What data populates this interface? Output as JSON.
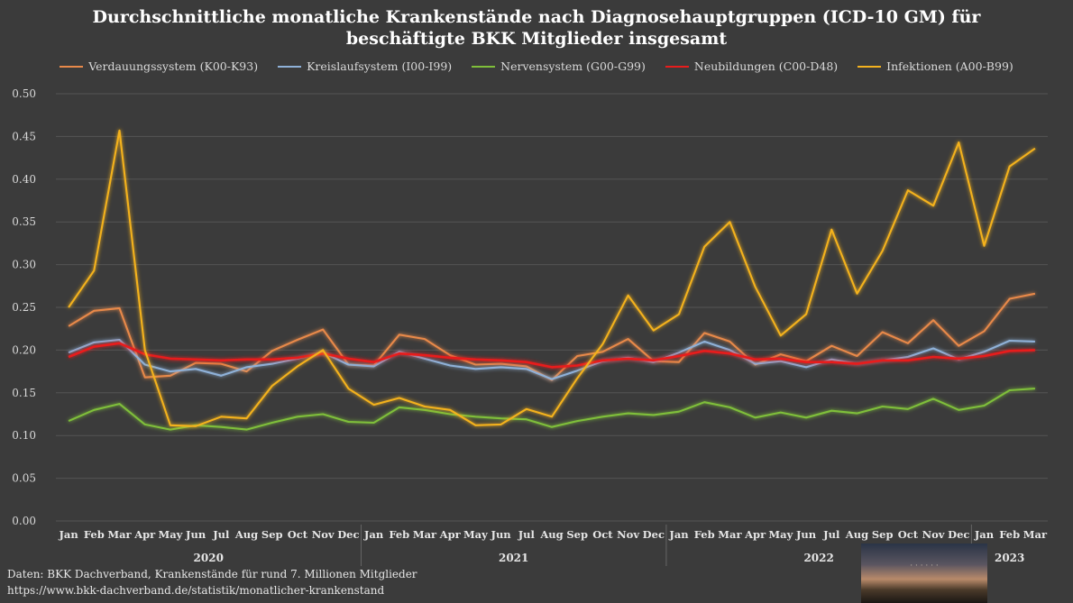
{
  "chart_data": {
    "type": "line",
    "title_line1": "Durchschnittliche monatliche Krankenstände nach Diagnosehauptgruppen (ICD-10 GM) für",
    "title_line2": "beschäftigte BKK Mitglieder insgesamt",
    "categories": [
      "Jan",
      "Feb",
      "Mar",
      "Apr",
      "May",
      "Jun",
      "Jul",
      "Aug",
      "Sep",
      "Oct",
      "Nov",
      "Dec",
      "Jan",
      "Feb",
      "Mar",
      "Apr",
      "May",
      "Jun",
      "Jul",
      "Aug",
      "Sep",
      "Oct",
      "Nov",
      "Dec",
      "Jan",
      "Feb",
      "Mar",
      "Apr",
      "May",
      "Jun",
      "Jul",
      "Aug",
      "Sep",
      "Oct",
      "Nov",
      "Dec",
      "Jan",
      "Feb",
      "Mar"
    ],
    "years": [
      {
        "label": "2020",
        "start": 0,
        "end": 11
      },
      {
        "label": "2021",
        "start": 12,
        "end": 23
      },
      {
        "label": "2022",
        "start": 24,
        "end": 35
      },
      {
        "label": "2023",
        "start": 36,
        "end": 38
      }
    ],
    "ylim": [
      0,
      0.5
    ],
    "yticks": [
      "0.00",
      "0.05",
      "0.10",
      "0.15",
      "0.20",
      "0.25",
      "0.30",
      "0.35",
      "0.40",
      "0.45",
      "0.50"
    ],
    "grid": true,
    "legend_position": "top",
    "series": [
      {
        "name": "Verdauungssystem (K00-K93)",
        "color": "#e8894a",
        "values": [
          0.228,
          0.246,
          0.249,
          0.168,
          0.17,
          0.185,
          0.184,
          0.175,
          0.199,
          0.212,
          0.224,
          0.183,
          0.182,
          0.218,
          0.213,
          0.194,
          0.183,
          0.184,
          0.181,
          0.165,
          0.193,
          0.198,
          0.213,
          0.187,
          0.186,
          0.22,
          0.21,
          0.183,
          0.195,
          0.187,
          0.205,
          0.193,
          0.221,
          0.208,
          0.235,
          0.205,
          0.222,
          0.26,
          0.266
        ]
      },
      {
        "name": "Kreislaufsystem (I00-I99)",
        "color": "#8fb1d8",
        "values": [
          0.197,
          0.209,
          0.212,
          0.183,
          0.175,
          0.178,
          0.17,
          0.18,
          0.184,
          0.19,
          0.197,
          0.183,
          0.181,
          0.198,
          0.19,
          0.182,
          0.178,
          0.18,
          0.178,
          0.166,
          0.176,
          0.187,
          0.191,
          0.186,
          0.197,
          0.21,
          0.2,
          0.184,
          0.187,
          0.18,
          0.189,
          0.184,
          0.188,
          0.192,
          0.202,
          0.189,
          0.198,
          0.211,
          0.21
        ]
      },
      {
        "name": "Nervensystem (G00-G99)",
        "color": "#7fbf3a",
        "values": [
          0.117,
          0.13,
          0.137,
          0.113,
          0.107,
          0.112,
          0.11,
          0.107,
          0.115,
          0.122,
          0.125,
          0.116,
          0.115,
          0.133,
          0.13,
          0.125,
          0.122,
          0.12,
          0.119,
          0.11,
          0.117,
          0.122,
          0.126,
          0.124,
          0.128,
          0.139,
          0.133,
          0.121,
          0.127,
          0.121,
          0.129,
          0.126,
          0.134,
          0.131,
          0.143,
          0.13,
          0.135,
          0.153,
          0.155
        ]
      },
      {
        "name": "Neubildungen (C00-D48)",
        "color": "#e81c1c",
        "values": [
          0.192,
          0.204,
          0.208,
          0.195,
          0.19,
          0.189,
          0.188,
          0.189,
          0.189,
          0.191,
          0.196,
          0.19,
          0.186,
          0.196,
          0.194,
          0.191,
          0.189,
          0.188,
          0.186,
          0.18,
          0.182,
          0.188,
          0.19,
          0.188,
          0.193,
          0.199,
          0.196,
          0.189,
          0.19,
          0.186,
          0.186,
          0.184,
          0.188,
          0.188,
          0.192,
          0.19,
          0.193,
          0.199,
          0.2
        ]
      },
      {
        "name": "Infektionen (A00-B99)",
        "color": "#f4b21f",
        "values": [
          0.25,
          0.293,
          0.457,
          0.2,
          0.112,
          0.111,
          0.122,
          0.12,
          0.158,
          0.181,
          0.2,
          0.155,
          0.136,
          0.144,
          0.134,
          0.13,
          0.112,
          0.113,
          0.131,
          0.122,
          0.167,
          0.207,
          0.264,
          0.223,
          0.242,
          0.321,
          0.35,
          0.274,
          0.217,
          0.242,
          0.341,
          0.266,
          0.316,
          0.387,
          0.369,
          0.443,
          0.322,
          0.415,
          0.436
        ]
      }
    ]
  },
  "source": {
    "line1": "Daten: BKK Dachverband, Krankenstände für rund 7. Millionen Mitglieder",
    "line2": "https://www.bkk-dachverband.de/statistik/monatlicher-krankenstand"
  },
  "colors": {
    "background": "#3b3b3b",
    "grid": "#555555",
    "text": "#d9d9d9"
  }
}
